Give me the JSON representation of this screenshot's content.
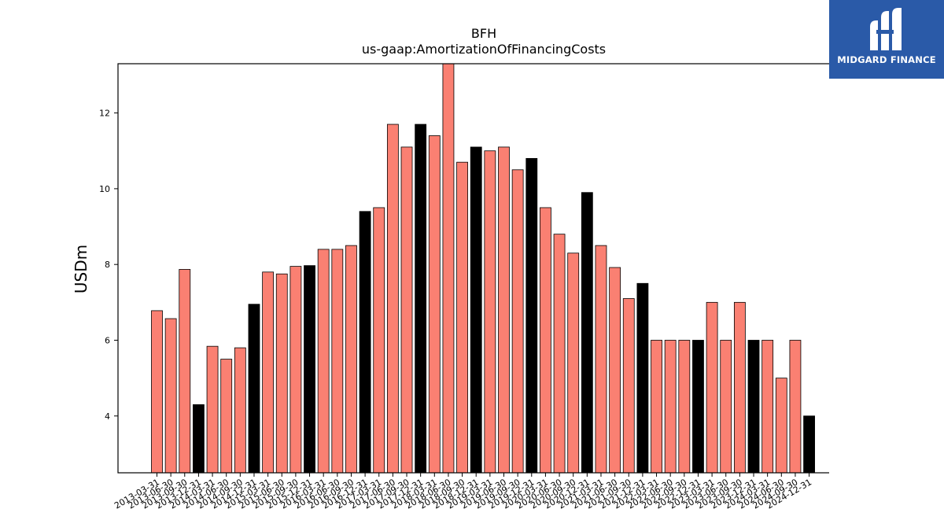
{
  "chart_data": {
    "type": "bar",
    "title": "BFH",
    "subtitle": "us-gaap:AmortizationOfFinancingCosts",
    "ylabel": "USDm",
    "xlabel": "",
    "ylim": [
      2.5,
      13.3
    ],
    "yticks": [
      4,
      6,
      8,
      10,
      12
    ],
    "grid": false,
    "colors": {
      "quarter": "#fa8072",
      "year_end": "#000000",
      "edge": "#000000"
    },
    "categories": [
      "2013-03-31",
      "2013-06-30",
      "2013-09-30",
      "2013-12-31",
      "2014-03-31",
      "2014-06-30",
      "2014-09-30",
      "2014-12-31",
      "2015-03-31",
      "2015-06-30",
      "2015-09-30",
      "2015-12-31",
      "2016-03-31",
      "2016-06-30",
      "2016-09-30",
      "2016-12-31",
      "2017-03-31",
      "2017-06-30",
      "2017-09-30",
      "2017-12-31",
      "2018-03-31",
      "2018-06-30",
      "2018-09-30",
      "2018-12-31",
      "2019-03-31",
      "2019-06-30",
      "2019-09-30",
      "2019-12-31",
      "2020-03-31",
      "2020-06-30",
      "2020-09-30",
      "2020-12-31",
      "2021-03-31",
      "2021-06-30",
      "2021-09-30",
      "2021-12-31",
      "2022-03-31",
      "2022-06-30",
      "2022-09-30",
      "2022-12-31",
      "2023-03-31",
      "2023-06-30",
      "2023-09-30",
      "2023-12-31",
      "2024-03-31",
      "2024-06-30",
      "2024-09-30",
      "2024-12-31"
    ],
    "values": [
      6.78,
      6.57,
      7.87,
      4.3,
      5.84,
      5.5,
      5.8,
      6.95,
      7.8,
      7.75,
      7.95,
      7.97,
      8.4,
      8.4,
      8.5,
      9.4,
      9.5,
      11.7,
      11.1,
      11.7,
      11.4,
      13.3,
      10.7,
      11.1,
      11.0,
      11.1,
      10.5,
      10.8,
      9.5,
      8.8,
      8.3,
      9.9,
      8.5,
      7.92,
      7.1,
      7.5,
      6.0,
      6.0,
      6.0,
      6.0,
      7.0,
      6.0,
      7.0,
      6.0,
      6.0,
      5.0,
      6.0,
      4.0
    ]
  },
  "logo": {
    "text": "MIDGARD FINANCE"
  }
}
